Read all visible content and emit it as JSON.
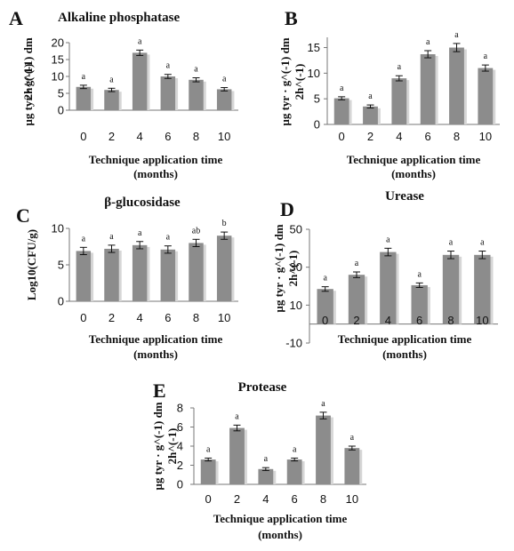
{
  "colors": {
    "bar": "#8c8c8c",
    "bar_shadow": "#d6d6d6",
    "axis": "#777777",
    "text": "#111111"
  },
  "chart_data": [
    {
      "panel": "A",
      "type": "bar",
      "title": "Alkaline phosphatase",
      "ylabel": [
        "µg tyr · g^(-1) dm",
        "2h^(-1)"
      ],
      "xlabel": [
        "Technique application time",
        "(months)"
      ],
      "categories": [
        "0",
        "2",
        "4",
        "6",
        "8",
        "10"
      ],
      "values": [
        6.9,
        6.0,
        17.0,
        10.0,
        9.0,
        6.2
      ],
      "errors": [
        0.5,
        0.5,
        0.8,
        0.6,
        0.6,
        0.5
      ],
      "labels": [
        "a",
        "a",
        "a",
        "a",
        "a",
        "a"
      ],
      "ylim": [
        0,
        20
      ],
      "yticks": [
        0,
        5,
        10,
        15,
        20
      ]
    },
    {
      "panel": "B",
      "type": "bar",
      "title": "",
      "ylabel": [
        "µg tyr · g^(-1) dm",
        "2h^(-1)"
      ],
      "xlabel": [
        "Technique application time",
        "(months)"
      ],
      "categories": [
        "0",
        "2",
        "4",
        "6",
        "8",
        "10"
      ],
      "values": [
        5.1,
        3.5,
        9.0,
        13.7,
        15.0,
        11.0
      ],
      "errors": [
        0.3,
        0.3,
        0.5,
        0.7,
        0.8,
        0.6
      ],
      "labels": [
        "a",
        "a",
        "a",
        "a",
        "a",
        "a"
      ],
      "ylim": [
        0,
        17
      ],
      "yticks": [
        0,
        5,
        10,
        15
      ]
    },
    {
      "panel": "C",
      "type": "bar",
      "title": "β-glucosidase",
      "ylabel": [
        "Log10(CFU/g)"
      ],
      "xlabel": [
        "Technique application time",
        "(months)"
      ],
      "categories": [
        "0",
        "2",
        "4",
        "6",
        "8",
        "10"
      ],
      "values": [
        6.9,
        7.2,
        7.7,
        7.1,
        8.0,
        9.0
      ],
      "errors": [
        0.5,
        0.5,
        0.5,
        0.5,
        0.5,
        0.5
      ],
      "labels": [
        "a",
        "a",
        "a",
        "a",
        "ab",
        "b"
      ],
      "ylim": [
        0,
        10
      ],
      "yticks": [
        0,
        5,
        10
      ]
    },
    {
      "panel": "D",
      "type": "bar",
      "title": "Urease",
      "ylabel": [
        "µg tyr · g^(-1) dm",
        "2h^(-1)"
      ],
      "xlabel": [
        "Technique application time",
        "(months)"
      ],
      "categories": [
        "0",
        "2",
        "4",
        "6",
        "8",
        "10"
      ],
      "values": [
        18.5,
        26.0,
        38.0,
        20.5,
        36.5,
        36.5
      ],
      "errors": [
        1.2,
        1.5,
        2.0,
        1.2,
        2.0,
        2.0
      ],
      "labels": [
        "a",
        "a",
        "a",
        "a",
        "a",
        "a"
      ],
      "ylim": [
        -10,
        50
      ],
      "yticks": [
        -10,
        10,
        30,
        50
      ]
    },
    {
      "panel": "E",
      "type": "bar",
      "title": "Protease",
      "ylabel": [
        "µg tyr · g^(-1) dm",
        "2h^(-1)"
      ],
      "xlabel": [
        "Technique application time",
        "(months)"
      ],
      "categories": [
        "0",
        "2",
        "4",
        "6",
        "8",
        "10"
      ],
      "values": [
        2.6,
        5.9,
        1.6,
        2.6,
        7.2,
        3.8
      ],
      "errors": [
        0.15,
        0.3,
        0.15,
        0.15,
        0.35,
        0.2
      ],
      "labels": [
        "a",
        "a",
        "a",
        "a",
        "a",
        "a"
      ],
      "ylim": [
        0,
        8
      ],
      "yticks": [
        0,
        2,
        4,
        6,
        8
      ]
    }
  ]
}
